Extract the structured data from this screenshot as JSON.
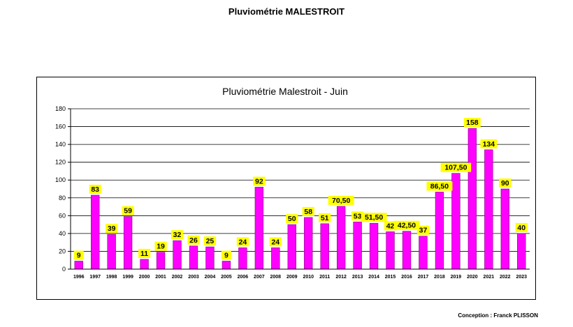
{
  "page": {
    "title": "Pluviométrie MALESTROIT",
    "credit": "Conception : Franck PLISSON"
  },
  "colors": {
    "bar": "#ff00ff",
    "bar_outline": "#800080",
    "label_bg": "#ffff00",
    "grid": "#000000"
  },
  "chart_data": {
    "type": "bar",
    "title": "Pluviométrie Malestroit - Juin",
    "xlabel": "",
    "ylabel": "",
    "ylim": [
      0,
      180
    ],
    "yticks": [
      0,
      20,
      40,
      60,
      80,
      100,
      120,
      140,
      160,
      180
    ],
    "grid": true,
    "legend": "none",
    "categories": [
      "1996",
      "1997",
      "1998",
      "1999",
      "2000",
      "2001",
      "2002",
      "2003",
      "2004",
      "2005",
      "2006",
      "2007",
      "2008",
      "2009",
      "2010",
      "2011",
      "2012",
      "2013",
      "2014",
      "2015",
      "2016",
      "2017",
      "2018",
      "2019",
      "2020",
      "2021",
      "2022",
      "2023"
    ],
    "values": [
      9,
      83,
      39,
      59,
      11,
      19,
      32,
      26,
      25,
      9,
      24,
      92,
      24,
      50,
      58,
      51,
      70.5,
      53,
      51.5,
      42,
      42.5,
      37,
      86.5,
      107.5,
      158,
      134,
      90,
      40
    ],
    "data_labels": [
      "9",
      "83",
      "39",
      "59",
      "11",
      "19",
      "32",
      "26",
      "25",
      "9",
      "24",
      "92",
      "24",
      "50",
      "58",
      "51",
      "70,50",
      "53",
      "51,50",
      "42",
      "42,50",
      "37",
      "86,50",
      "107,50",
      "158",
      "134",
      "90",
      "40"
    ]
  }
}
